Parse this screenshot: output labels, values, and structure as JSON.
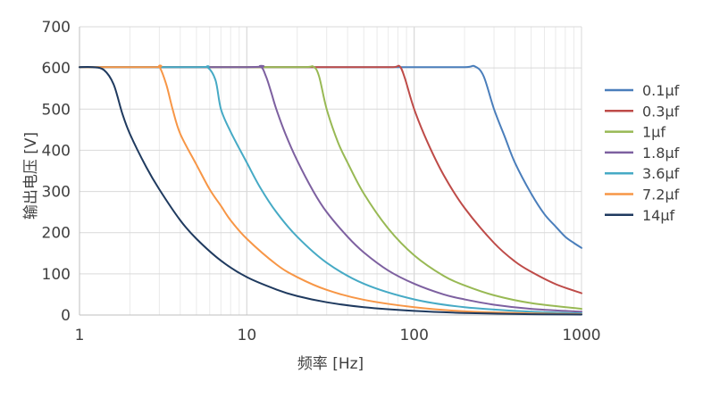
{
  "chart_data": {
    "type": "line",
    "xlabel": "频率 [Hz]",
    "ylabel": "输出电压 [V]",
    "xscale": "log",
    "xlim": [
      1,
      1000
    ],
    "ylim": [
      0,
      700
    ],
    "xticks": [
      1,
      10,
      100,
      1000
    ],
    "xtick_labels": [
      "1",
      "10",
      "100",
      "1000"
    ],
    "yticks": [
      0,
      100,
      200,
      300,
      400,
      500,
      600,
      700
    ],
    "ytick_labels": [
      "0",
      "100",
      "200",
      "300",
      "400",
      "500",
      "600",
      "700"
    ],
    "grid": true,
    "legend_position": "right",
    "series": [
      {
        "name": "0.1μf",
        "color": "#4a7ebb",
        "x": [
          1,
          10,
          100,
          200,
          230,
          260,
          300,
          350,
          400,
          500,
          600,
          700,
          800,
          900,
          1000
        ],
        "y": [
          602,
          602,
          602,
          602,
          604,
          580,
          500,
          430,
          370,
          295,
          245,
          215,
          190,
          175,
          163
        ]
      },
      {
        "name": "0.3μf",
        "color": "#be4b48",
        "x": [
          1,
          10,
          50,
          75,
          82,
          88,
          100,
          120,
          150,
          200,
          300,
          400,
          500,
          700,
          1000
        ],
        "y": [
          602,
          602,
          602,
          602,
          604,
          575,
          500,
          420,
          340,
          260,
          175,
          130,
          105,
          75,
          53
        ]
      },
      {
        "name": "1μf",
        "color": "#98b954",
        "x": [
          1,
          10,
          22,
          25,
          27,
          30,
          35,
          40,
          50,
          70,
          100,
          150,
          200,
          300,
          500,
          1000
        ],
        "y": [
          602,
          602,
          602,
          603,
          580,
          500,
          420,
          370,
          295,
          210,
          145,
          95,
          72,
          48,
          29,
          15
        ]
      },
      {
        "name": "1.8μf",
        "color": "#7d60a0",
        "x": [
          1,
          10,
          12,
          13,
          14,
          15,
          17,
          20,
          25,
          30,
          40,
          50,
          70,
          100,
          150,
          200,
          300,
          500,
          1000
        ],
        "y": [
          602,
          602,
          604,
          580,
          540,
          500,
          440,
          375,
          300,
          250,
          190,
          152,
          108,
          76,
          50,
          38,
          25,
          15,
          8
        ]
      },
      {
        "name": "3.6μf",
        "color": "#46aac5",
        "x": [
          1,
          5,
          5.8,
          6.5,
          7,
          8,
          10,
          12,
          15,
          20,
          30,
          50,
          100,
          200,
          500,
          1000
        ],
        "y": [
          602,
          602,
          602,
          570,
          500,
          445,
          370,
          310,
          250,
          190,
          127,
          76,
          38,
          19,
          8,
          4
        ]
      },
      {
        "name": "7.2μf",
        "color": "#f79646",
        "x": [
          1,
          2.8,
          3,
          3.3,
          3.6,
          4,
          5,
          6,
          7,
          8,
          10,
          15,
          20,
          30,
          50,
          100,
          200,
          500,
          1000
        ],
        "y": [
          602,
          602,
          603,
          560,
          500,
          440,
          365,
          305,
          265,
          230,
          185,
          123,
          92,
          61,
          37,
          19,
          9,
          4,
          2
        ]
      },
      {
        "name": "14μf",
        "color": "#1f3a5f",
        "x": [
          1,
          1.2,
          1.4,
          1.6,
          1.8,
          2,
          2.5,
          3,
          4,
          5,
          7,
          10,
          15,
          20,
          30,
          50,
          100,
          200,
          500,
          1000
        ],
        "y": [
          602,
          602,
          595,
          560,
          490,
          440,
          360,
          305,
          230,
          185,
          132,
          92,
          62,
          46,
          31,
          19,
          10,
          5,
          2,
          1
        ]
      }
    ]
  }
}
